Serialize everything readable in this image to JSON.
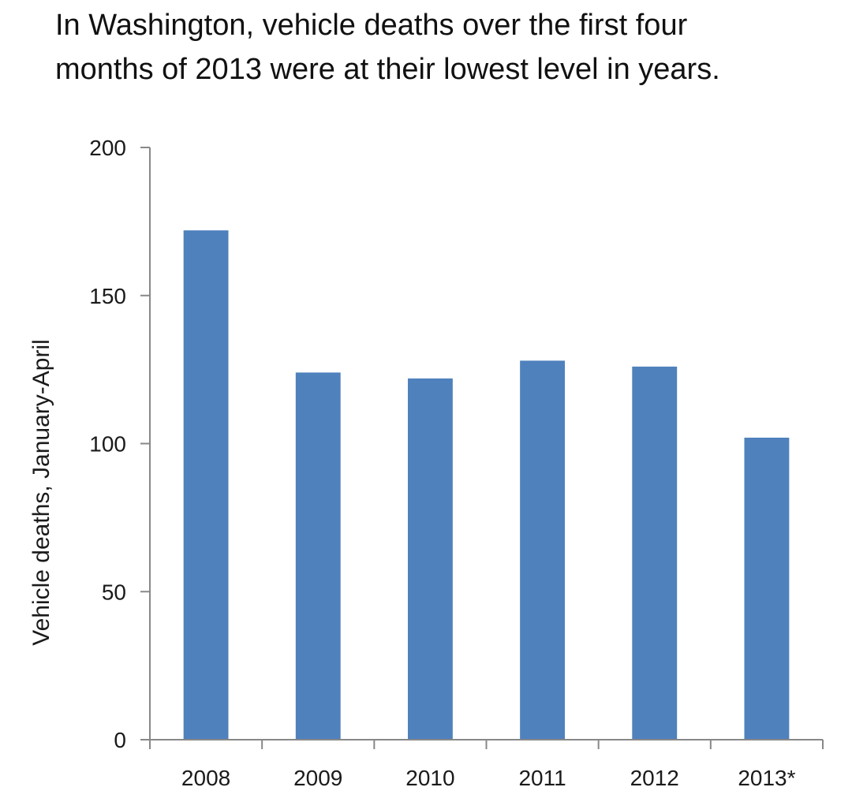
{
  "chart_data": {
    "type": "bar",
    "title_lines": [
      "In Washington, vehicle deaths over the first four",
      "months of 2013 were at their lowest level in years."
    ],
    "categories": [
      "2008",
      "2009",
      "2010",
      "2011",
      "2012",
      "2013*"
    ],
    "values": [
      172,
      124,
      122,
      128,
      126,
      102
    ],
    "ylabel": "Vehicle deaths, January-April",
    "xlabel": "",
    "ylim": [
      0,
      200
    ],
    "yticks": [
      0,
      50,
      100,
      150,
      200
    ],
    "grid": false,
    "legend": "none",
    "bar_color": "#4F81BD"
  }
}
